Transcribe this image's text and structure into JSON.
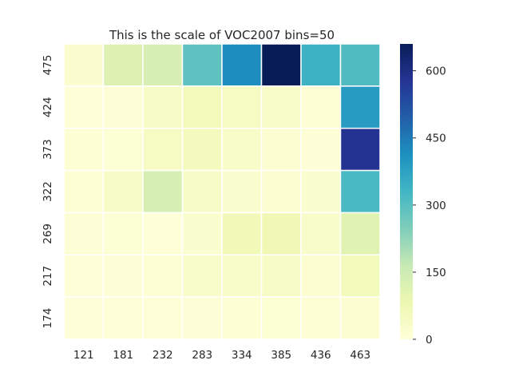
{
  "chart_data": {
    "type": "heatmap",
    "title": "This is the scale of VOC2007 bins=50",
    "xlabel": "",
    "ylabel": "",
    "x_categories": [
      "121",
      "181",
      "232",
      "283",
      "334",
      "385",
      "436",
      "463"
    ],
    "y_categories": [
      "475",
      "424",
      "373",
      "322",
      "269",
      "217",
      "174"
    ],
    "values": [
      [
        20,
        120,
        130,
        290,
        420,
        660,
        340,
        310
      ],
      [
        5,
        8,
        40,
        60,
        45,
        35,
        10,
        390
      ],
      [
        10,
        12,
        45,
        55,
        35,
        15,
        8,
        580
      ],
      [
        10,
        40,
        130,
        40,
        25,
        15,
        25,
        320
      ],
      [
        8,
        12,
        5,
        25,
        65,
        75,
        30,
        110
      ],
      [
        5,
        8,
        10,
        30,
        35,
        40,
        15,
        60
      ],
      [
        3,
        5,
        5,
        8,
        10,
        12,
        10,
        15
      ]
    ],
    "colorbar": {
      "min": 0,
      "max": 660,
      "ticks": [
        0,
        150,
        300,
        450,
        600
      ],
      "colormap": "YlGnBu"
    },
    "grid_lines": true,
    "cell_border_color": "#ffffff"
  }
}
